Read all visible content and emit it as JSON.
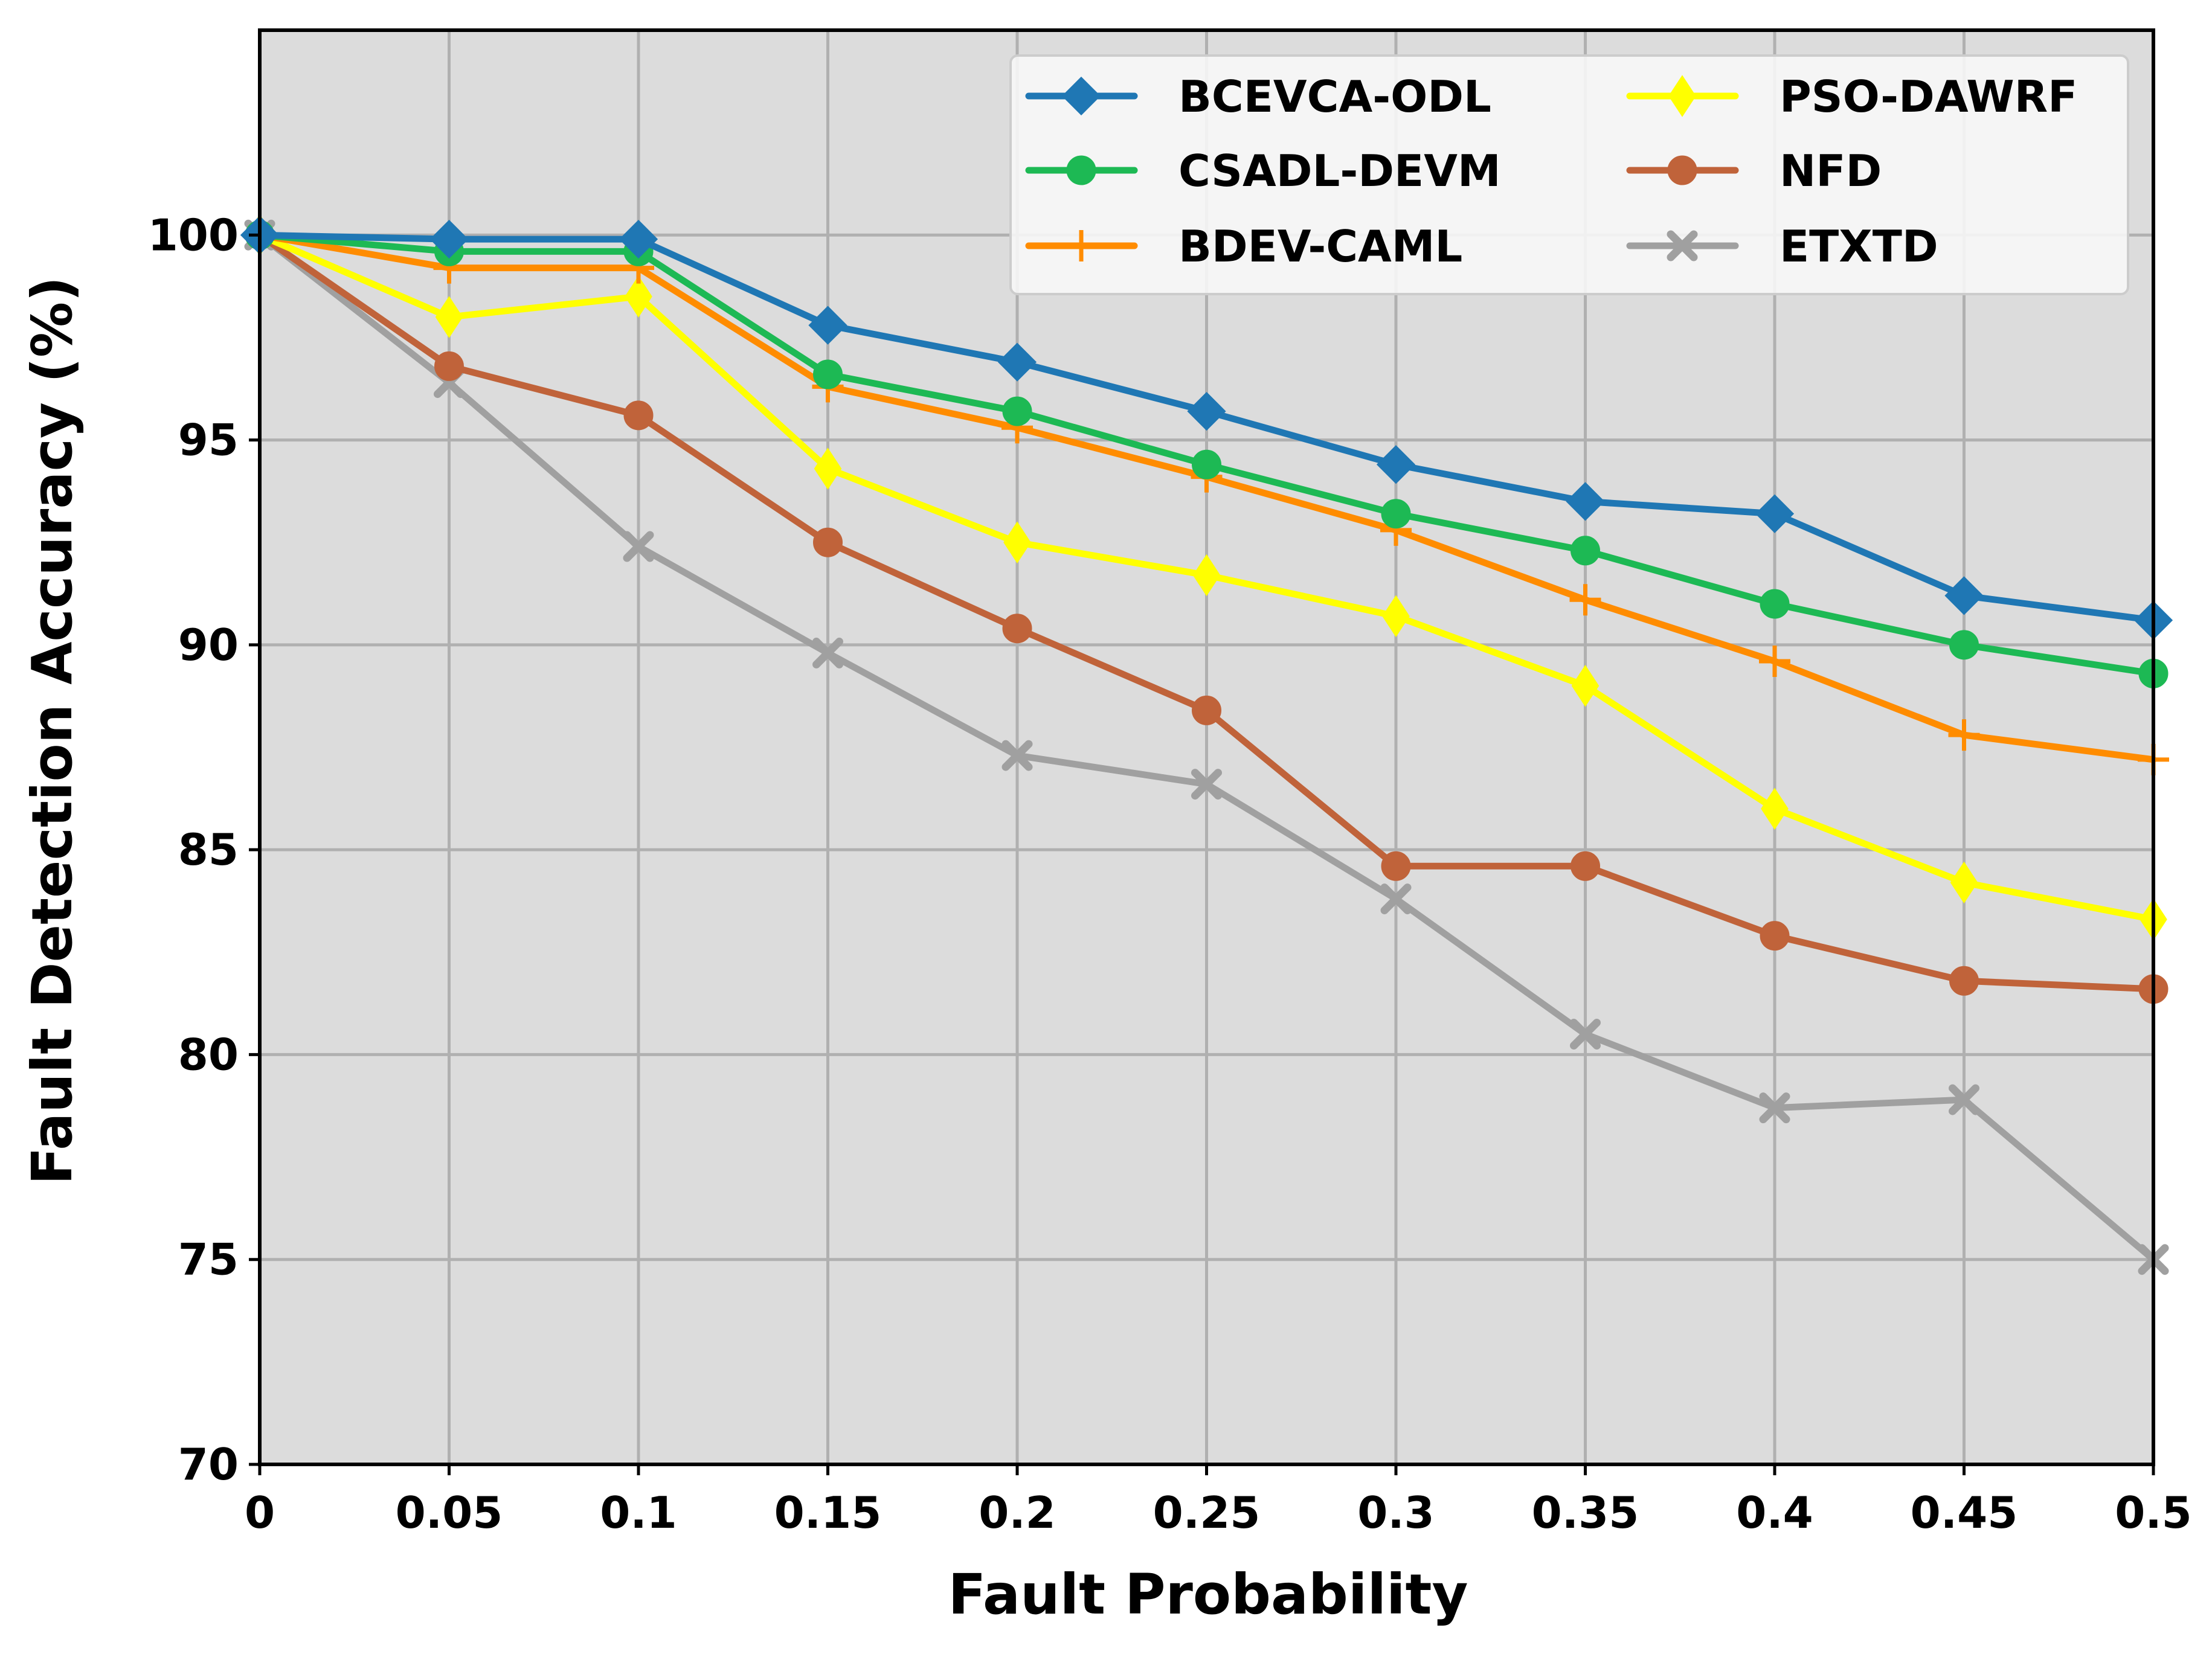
{
  "chart_data": {
    "type": "line",
    "title": "",
    "xlabel": "Fault Probability",
    "ylabel": "Fault Detection Accuracy (%)",
    "xlim": [
      0,
      0.5
    ],
    "ylim": [
      70,
      105
    ],
    "x": [
      0,
      0.05,
      0.1,
      0.15,
      0.2,
      0.25,
      0.3,
      0.35,
      0.4,
      0.45,
      0.5
    ],
    "x_tick_labels": [
      "0",
      "0.05",
      "0.1",
      "0.15",
      "0.2",
      "0.25",
      "0.3",
      "0.35",
      "0.4",
      "0.45",
      "0.5"
    ],
    "y_ticks": [
      70,
      75,
      80,
      85,
      90,
      95,
      100
    ],
    "y_tick_labels": [
      "70",
      "75",
      "80",
      "85",
      "90",
      "95",
      "100"
    ],
    "grid": true,
    "legend_position": "top-right",
    "series": [
      {
        "name": "BCEVCA-ODL",
        "color": "#1f77b4",
        "marker": "diamond",
        "values": [
          100,
          99.9,
          99.9,
          97.8,
          96.9,
          95.7,
          94.4,
          93.5,
          93.2,
          91.2,
          90.6
        ]
      },
      {
        "name": "CSADL-DEVM",
        "color": "#1db954",
        "marker": "circle",
        "values": [
          100,
          99.6,
          99.6,
          96.6,
          95.7,
          94.4,
          93.2,
          92.3,
          91.0,
          90.0,
          89.3
        ]
      },
      {
        "name": "BDEV-CAML",
        "color": "#ff8c00",
        "marker": "plus",
        "values": [
          100,
          99.2,
          99.2,
          96.3,
          95.3,
          94.1,
          92.8,
          91.1,
          89.6,
          87.8,
          87.2
        ]
      },
      {
        "name": "PSO-DAWRF",
        "color": "#ffff00",
        "marker": "thin-diamond",
        "values": [
          100,
          98.0,
          98.5,
          94.3,
          92.5,
          91.7,
          90.7,
          89.0,
          86.0,
          84.2,
          83.3
        ]
      },
      {
        "name": "NFD",
        "color": "#c0633a",
        "marker": "circle",
        "values": [
          100,
          96.8,
          95.6,
          92.5,
          90.4,
          88.4,
          84.6,
          84.6,
          82.9,
          81.8,
          81.6
        ]
      },
      {
        "name": "ETXTD",
        "color": "#a0a0a0",
        "marker": "x",
        "values": [
          100,
          96.4,
          92.4,
          89.8,
          87.3,
          86.6,
          83.8,
          80.5,
          78.7,
          78.9,
          75.0
        ]
      }
    ]
  }
}
